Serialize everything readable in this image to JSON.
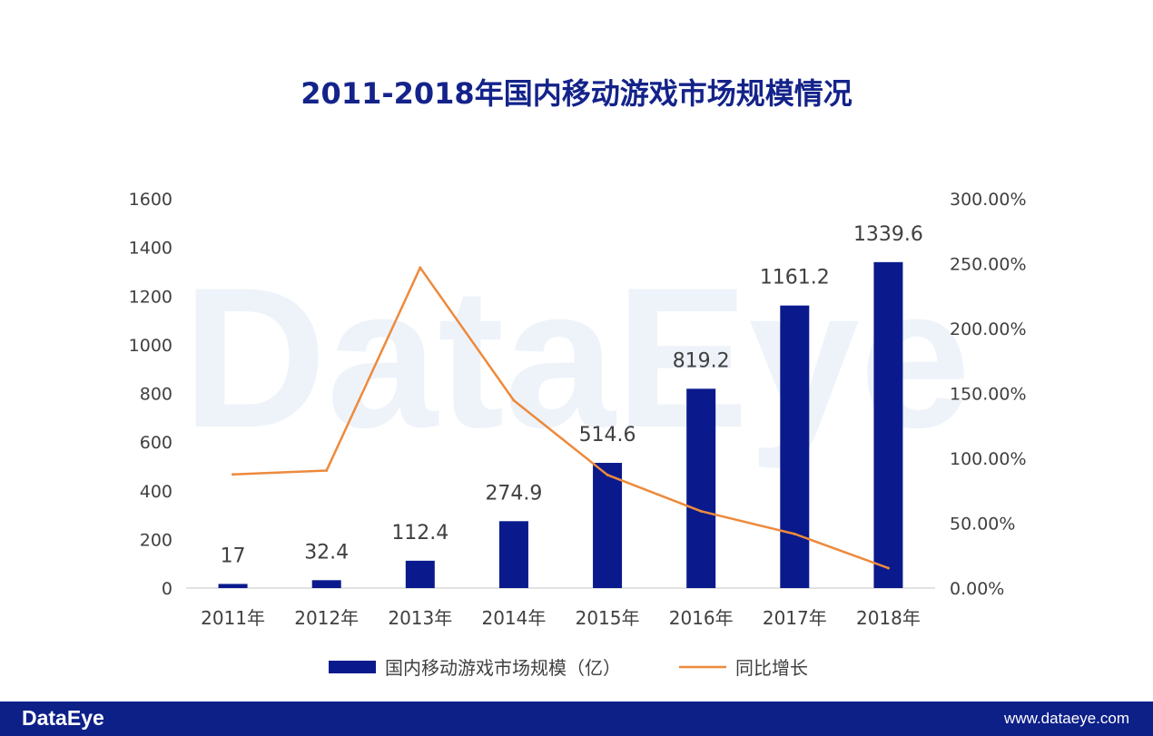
{
  "watermark": "DataEye",
  "footer": {
    "logo": "DataEye",
    "url": "www.dataeye.com"
  },
  "chart_data": {
    "type": "bar",
    "title": "2011-2018年国内移动游戏市场规模情况",
    "categories": [
      "2011年",
      "2012年",
      "2013年",
      "2014年",
      "2015年",
      "2016年",
      "2017年",
      "2018年"
    ],
    "series": [
      {
        "name": "国内移动游戏市场规模（亿）",
        "type": "bar",
        "axis": "left",
        "color": "#0a1a8c",
        "values": [
          17,
          32.4,
          112.4,
          274.9,
          514.6,
          819.2,
          1161.2,
          1339.6
        ],
        "labels": [
          "17",
          "32.4",
          "112.4",
          "274.9",
          "514.6",
          "819.2",
          "1161.2",
          "1339.6"
        ]
      },
      {
        "name": "同比增长",
        "type": "line",
        "axis": "right",
        "color": "#ed8a3c",
        "values": [
          87.6,
          90.6,
          246.9,
          144.6,
          87.2,
          59.2,
          41.7,
          15.4
        ]
      }
    ],
    "y_left": {
      "lim": [
        0,
        1600
      ],
      "ticks": [
        "0",
        "200",
        "400",
        "600",
        "800",
        "1000",
        "1200",
        "1400",
        "1600"
      ]
    },
    "y_right": {
      "lim": [
        0,
        300
      ],
      "ticks": [
        "0.00%",
        "50.00%",
        "100.00%",
        "150.00%",
        "200.00%",
        "250.00%",
        "300.00%"
      ]
    },
    "grid": false,
    "legend": "bottom"
  }
}
